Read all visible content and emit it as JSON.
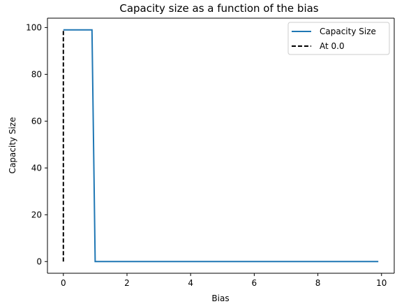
{
  "chart_data": {
    "type": "line",
    "title": "Capacity size as a function of the bias",
    "xlabel": "Bias",
    "ylabel": "Capacity Size",
    "xlim": [
      -0.5,
      10.4
    ],
    "ylim": [
      -5,
      104
    ],
    "x_ticks": [
      0,
      2,
      4,
      6,
      8,
      10
    ],
    "y_ticks": [
      0,
      20,
      40,
      60,
      80,
      100
    ],
    "x_tick_labels": [
      "0",
      "2",
      "4",
      "6",
      "8",
      "10"
    ],
    "y_tick_labels": [
      "0",
      "20",
      "40",
      "60",
      "80",
      "100"
    ],
    "grid": false,
    "legend_position": "top-right",
    "series": [
      {
        "name": "Capacity Size",
        "color": "#1f77b4",
        "style": "solid",
        "x": [
          0,
          0.9,
          1.0,
          9.9
        ],
        "y": [
          99,
          99,
          0,
          0
        ]
      },
      {
        "name": "At 0.0",
        "color": "#000000",
        "style": "dashed",
        "x": [
          0,
          0
        ],
        "y": [
          0,
          99
        ]
      }
    ]
  }
}
